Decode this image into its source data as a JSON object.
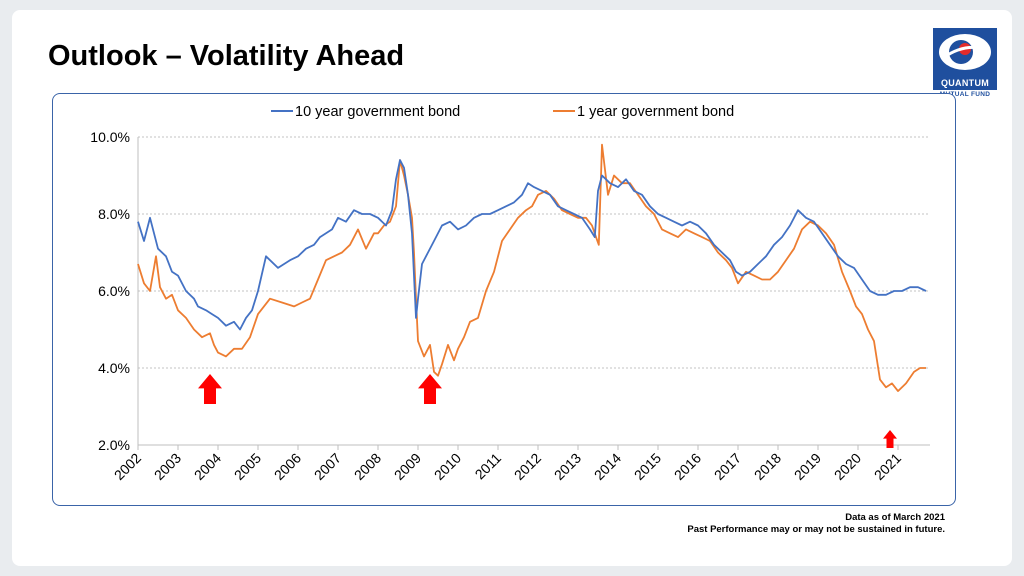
{
  "slide": {
    "title": "Outlook – Volatility Ahead",
    "logo_text": "QUANTUM",
    "logo_subtext": "MUTUAL FUND",
    "logo_icon": "quantum-logo-icon",
    "note_line1": "Data as of March 2021",
    "note_line2": "Past Performance may or may not be sustained in future."
  },
  "colors": {
    "series_10y": "#4472c4",
    "series_1y": "#ed7d31",
    "arrows": "#ff0000",
    "border": "#3a64a8"
  },
  "chart_data": {
    "type": "line",
    "title": "",
    "xlabel": "",
    "ylabel": "",
    "xlim": [
      2002,
      2021.8
    ],
    "ylim": [
      2.0,
      10.0
    ],
    "y_ticks": [
      2.0,
      4.0,
      6.0,
      8.0,
      10.0
    ],
    "y_tick_labels": [
      "2.0%",
      "4.0%",
      "6.0%",
      "8.0%",
      "10.0%"
    ],
    "x_ticks": [
      2002,
      2003,
      2004,
      2005,
      2006,
      2007,
      2008,
      2009,
      2010,
      2011,
      2012,
      2013,
      2014,
      2015,
      2016,
      2017,
      2018,
      2019,
      2020,
      2021
    ],
    "x_tick_labels": [
      "2002",
      "2003",
      "2004",
      "2005",
      "2006",
      "2007",
      "2008",
      "2009",
      "2010",
      "2011",
      "2012",
      "2013",
      "2014",
      "2015",
      "2016",
      "2017",
      "2018",
      "2019",
      "2020",
      "2021"
    ],
    "grid": "horizontal dashed",
    "legend": "top",
    "series": [
      {
        "name": "10 year government bond",
        "x": [
          2002.0,
          2002.15,
          2002.3,
          2002.5,
          2002.7,
          2002.85,
          2003.0,
          2003.2,
          2003.4,
          2003.5,
          2003.7,
          2003.85,
          2004.0,
          2004.2,
          2004.4,
          2004.55,
          2004.7,
          2004.85,
          2005.0,
          2005.2,
          2005.5,
          2005.8,
          2006.0,
          2006.2,
          2006.4,
          2006.55,
          2006.7,
          2006.85,
          2007.0,
          2007.2,
          2007.4,
          2007.6,
          2007.8,
          2008.0,
          2008.2,
          2008.35,
          2008.45,
          2008.55,
          2008.65,
          2008.75,
          2008.85,
          2008.9,
          2008.95,
          2009.0,
          2009.1,
          2009.25,
          2009.4,
          2009.6,
          2009.8,
          2010.0,
          2010.2,
          2010.4,
          2010.6,
          2010.8,
          2011.0,
          2011.2,
          2011.4,
          2011.6,
          2011.75,
          2011.9,
          2012.1,
          2012.3,
          2012.5,
          2012.7,
          2012.9,
          2013.1,
          2013.3,
          2013.42,
          2013.5,
          2013.6,
          2013.7,
          2013.8,
          2014.0,
          2014.2,
          2014.4,
          2014.6,
          2014.8,
          2015.0,
          2015.2,
          2015.4,
          2015.6,
          2015.8,
          2016.0,
          2016.2,
          2016.4,
          2016.6,
          2016.8,
          2016.95,
          2017.1,
          2017.3,
          2017.5,
          2017.7,
          2017.9,
          2018.1,
          2018.3,
          2018.5,
          2018.7,
          2018.9,
          2019.1,
          2019.3,
          2019.5,
          2019.7,
          2019.9,
          2020.1,
          2020.3,
          2020.5,
          2020.7,
          2020.9,
          2021.1,
          2021.3,
          2021.5,
          2021.7
        ],
        "values": [
          7.8,
          7.3,
          7.9,
          7.1,
          6.9,
          6.5,
          6.4,
          6.0,
          5.8,
          5.6,
          5.5,
          5.4,
          5.3,
          5.1,
          5.2,
          5.0,
          5.3,
          5.5,
          6.0,
          6.9,
          6.6,
          6.8,
          6.9,
          7.1,
          7.2,
          7.4,
          7.5,
          7.6,
          7.9,
          7.8,
          8.1,
          8.0,
          8.0,
          7.9,
          7.7,
          8.1,
          8.9,
          9.4,
          9.2,
          8.5,
          7.5,
          6.4,
          5.3,
          5.8,
          6.7,
          7.0,
          7.3,
          7.7,
          7.8,
          7.6,
          7.7,
          7.9,
          8.0,
          8.0,
          8.1,
          8.2,
          8.3,
          8.5,
          8.8,
          8.7,
          8.6,
          8.5,
          8.2,
          8.1,
          8.0,
          7.9,
          7.6,
          7.4,
          8.6,
          9.0,
          8.9,
          8.8,
          8.7,
          8.9,
          8.6,
          8.5,
          8.2,
          8.0,
          7.9,
          7.8,
          7.7,
          7.8,
          7.7,
          7.5,
          7.2,
          7.0,
          6.8,
          6.5,
          6.4,
          6.5,
          6.7,
          6.9,
          7.2,
          7.4,
          7.7,
          8.1,
          7.9,
          7.8,
          7.5,
          7.2,
          6.9,
          6.7,
          6.6,
          6.3,
          6.0,
          5.9,
          5.9,
          6.0,
          6.0,
          6.1,
          6.1,
          6.0
        ]
      },
      {
        "name": "1 year government bond",
        "x": [
          2002.0,
          2002.15,
          2002.3,
          2002.45,
          2002.55,
          2002.7,
          2002.85,
          2003.0,
          2003.2,
          2003.4,
          2003.6,
          2003.8,
          2003.9,
          2004.0,
          2004.2,
          2004.4,
          2004.6,
          2004.8,
          2005.0,
          2005.3,
          2005.6,
          2005.9,
          2006.1,
          2006.3,
          2006.5,
          2006.7,
          2006.9,
          2007.1,
          2007.3,
          2007.5,
          2007.7,
          2007.9,
          2008.0,
          2008.15,
          2008.3,
          2008.45,
          2008.55,
          2008.65,
          2008.75,
          2008.85,
          2008.9,
          2008.95,
          2009.0,
          2009.15,
          2009.3,
          2009.4,
          2009.5,
          2009.6,
          2009.75,
          2009.9,
          2010.0,
          2010.15,
          2010.3,
          2010.5,
          2010.7,
          2010.9,
          2011.1,
          2011.3,
          2011.5,
          2011.7,
          2011.85,
          2012.0,
          2012.2,
          2012.4,
          2012.6,
          2012.8,
          2013.0,
          2013.2,
          2013.35,
          2013.45,
          2013.52,
          2013.6,
          2013.75,
          2013.9,
          2014.1,
          2014.3,
          2014.5,
          2014.7,
          2014.9,
          2015.1,
          2015.3,
          2015.5,
          2015.7,
          2015.9,
          2016.1,
          2016.3,
          2016.5,
          2016.7,
          2016.85,
          2017.0,
          2017.2,
          2017.4,
          2017.6,
          2017.8,
          2018.0,
          2018.2,
          2018.4,
          2018.6,
          2018.8,
          2019.0,
          2019.2,
          2019.4,
          2019.6,
          2019.8,
          2019.95,
          2020.1,
          2020.25,
          2020.4,
          2020.55,
          2020.7,
          2020.85,
          2021.0,
          2021.2,
          2021.4,
          2021.55,
          2021.7
        ],
        "values": [
          6.7,
          6.2,
          6.0,
          6.9,
          6.1,
          5.8,
          5.9,
          5.5,
          5.3,
          5.0,
          4.8,
          4.9,
          4.6,
          4.4,
          4.3,
          4.5,
          4.5,
          4.8,
          5.4,
          5.8,
          5.7,
          5.6,
          5.7,
          5.8,
          6.3,
          6.8,
          6.9,
          7.0,
          7.2,
          7.6,
          7.1,
          7.5,
          7.5,
          7.7,
          7.8,
          8.2,
          9.4,
          9.0,
          8.5,
          7.9,
          7.0,
          5.8,
          4.7,
          4.3,
          4.6,
          3.9,
          3.8,
          4.1,
          4.6,
          4.2,
          4.5,
          4.8,
          5.2,
          5.3,
          6.0,
          6.5,
          7.3,
          7.6,
          7.9,
          8.1,
          8.2,
          8.5,
          8.6,
          8.4,
          8.1,
          8.0,
          7.9,
          7.9,
          7.7,
          7.4,
          7.2,
          9.8,
          8.5,
          9.0,
          8.8,
          8.8,
          8.5,
          8.2,
          8.0,
          7.6,
          7.5,
          7.4,
          7.6,
          7.5,
          7.4,
          7.3,
          7.0,
          6.8,
          6.6,
          6.2,
          6.5,
          6.4,
          6.3,
          6.3,
          6.5,
          6.8,
          7.1,
          7.6,
          7.8,
          7.7,
          7.5,
          7.2,
          6.5,
          6.0,
          5.6,
          5.4,
          5.0,
          4.7,
          3.7,
          3.5,
          3.6,
          3.4,
          3.6,
          3.9,
          4.0,
          4.0
        ]
      }
    ],
    "annotations": [
      {
        "type": "arrow-up",
        "x": 2003.8,
        "label": ""
      },
      {
        "type": "arrow-up",
        "x": 2009.3,
        "label": ""
      },
      {
        "type": "arrow-up",
        "x": 2020.8,
        "label": ""
      }
    ]
  }
}
